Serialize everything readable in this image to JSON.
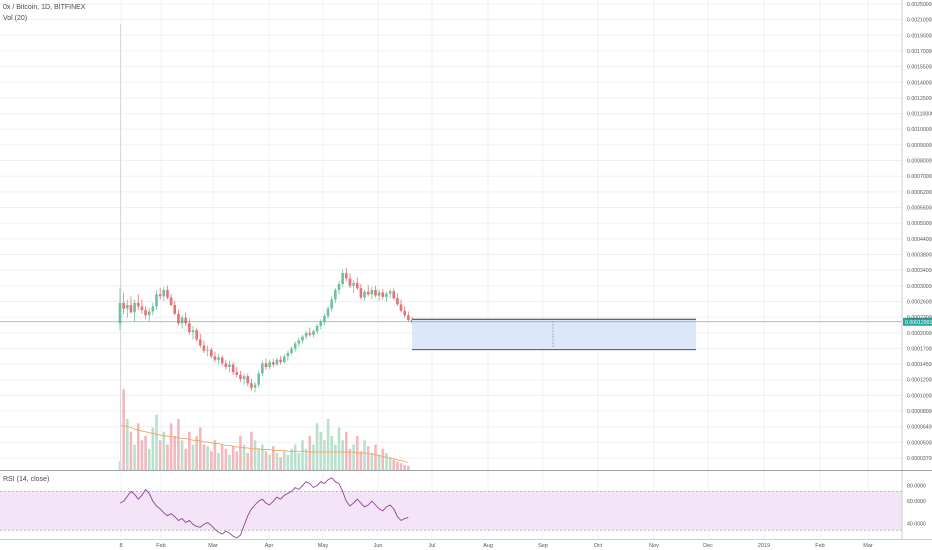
{
  "header": {
    "symbol": "0x / Bitcoin, 1D, BITFINEX",
    "volume_label": "Vol (20)",
    "rsi_label": "RSI (14, close)"
  },
  "colors": {
    "up": "#6cc29a",
    "down": "#e8707a",
    "vol_up": "#b9e0cd",
    "vol_down": "#f3b8bc",
    "vol_ma": "#f4a460",
    "rsi_line": "#8e4596",
    "rsi_band": "#f3e4f7",
    "price_line": "#26a69a",
    "price_tag": "#26a69a",
    "box_fill": "#dce8fa",
    "box_stroke": "#2e3f55",
    "grid": "#edf0f3"
  },
  "chart_data": [
    {
      "type": "candlestick",
      "title": "0x / Bitcoin, 1D, BITFINEX",
      "x_tick_labels": [
        "8",
        "Feb",
        "Mar",
        "Apr",
        "May",
        "Jun",
        "Jul",
        "Aug",
        "Sep",
        "Oct",
        "Nov",
        "Dec",
        "2019",
        "Feb",
        "Mar"
      ],
      "y_tick_labels": [
        "0.00250000",
        "0.00210000",
        "0.00190000",
        "0.00170000",
        "0.00155000",
        "0.00140000",
        "0.00125000",
        "0.00110000",
        "0.00100000",
        "0.00090000",
        "0.00080000",
        "0.00070000",
        "0.00062000",
        "0.00056000",
        "0.00050000",
        "0.00044000",
        "0.00038000",
        "0.00034000",
        "0.00030000",
        "0.00026000",
        "0.00023000",
        "0.00020000",
        "0.00017000",
        "0.00014500",
        "0.00012000",
        "0.00010000",
        "0.00008000",
        "0.00006400",
        "0.00005000",
        "0.00003700"
      ],
      "y_scale": "log",
      "y_range": [
        3.3e-05,
        0.0026
      ],
      "last_price": "0.00012991",
      "last_price_value": 0.00012991,
      "candles": [
        [
          0.000128,
          0.000179,
          0.00012,
          0.000155
        ],
        [
          0.000155,
          0.00017,
          0.00014,
          0.000147
        ],
        [
          0.000147,
          0.00016,
          0.000135,
          0.000152
        ],
        [
          0.000152,
          0.000165,
          0.00014,
          0.000142
        ],
        [
          0.000142,
          0.00016,
          0.00013,
          0.000155
        ],
        [
          0.000155,
          0.000168,
          0.000145,
          0.00015
        ],
        [
          0.00015,
          0.00016,
          0.00014,
          0.000145
        ],
        [
          0.000145,
          0.00015,
          0.000133,
          0.000138
        ],
        [
          0.000138,
          0.000148,
          0.00013,
          0.000143
        ],
        [
          0.000143,
          0.000155,
          0.000138,
          0.00015
        ],
        [
          0.00015,
          0.000175,
          0.000145,
          0.000168
        ],
        [
          0.000168,
          0.000178,
          0.00016,
          0.000165
        ],
        [
          0.000165,
          0.00018,
          0.000158,
          0.000175
        ],
        [
          0.000175,
          0.000182,
          0.00016,
          0.000163
        ],
        [
          0.000163,
          0.000168,
          0.00015,
          0.000152
        ],
        [
          0.000152,
          0.000158,
          0.000138,
          0.00014
        ],
        [
          0.00014,
          0.000145,
          0.000125,
          0.000128
        ],
        [
          0.000128,
          0.000138,
          0.000122,
          0.000135
        ],
        [
          0.000135,
          0.000142,
          0.000125,
          0.000128
        ],
        [
          0.000128,
          0.000134,
          0.000115,
          0.000118
        ],
        [
          0.000118,
          0.000125,
          0.00011,
          0.00012
        ],
        [
          0.00012,
          0.000123,
          0.000108,
          0.00011
        ],
        [
          0.00011,
          0.000116,
          0.000102,
          0.000104
        ],
        [
          0.000104,
          0.000109,
          9.7e-05,
          9.9e-05
        ],
        [
          9.9e-05,
          0.000104,
          9.4e-05,
          0.0001
        ],
        [
          0.0001,
          0.000102,
          9.2e-05,
          9.4e-05
        ],
        [
          9.4e-05,
          9.8e-05,
          8.9e-05,
          9.1e-05
        ],
        [
          9.1e-05,
          9.6e-05,
          8.7e-05,
          9.3e-05
        ],
        [
          9.3e-05,
          9.5e-05,
          8.6e-05,
          8.8e-05
        ],
        [
          8.8e-05,
          9.1e-05,
          8.3e-05,
          8.5e-05
        ],
        [
          8.5e-05,
          9e-05,
          8.1e-05,
          8.7e-05
        ],
        [
          8.7e-05,
          8.9e-05,
          7.9e-05,
          8.1e-05
        ],
        [
          8.1e-05,
          8.5e-05,
          7.7e-05,
          7.9e-05
        ],
        [
          7.9e-05,
          8.2e-05,
          7.4e-05,
          7.6e-05
        ],
        [
          7.6e-05,
          8e-05,
          7.2e-05,
          7.8e-05
        ],
        [
          7.8e-05,
          8e-05,
          7.1e-05,
          7.3e-05
        ],
        [
          7.3e-05,
          7.6e-05,
          6.8e-05,
          7e-05
        ],
        [
          7e-05,
          7.4e-05,
          6.7e-05,
          7.2e-05
        ],
        [
          7.2e-05,
          8.2e-05,
          7e-05,
          8e-05
        ],
        [
          8e-05,
          9e-05,
          7.8e-05,
          8.8e-05
        ],
        [
          8.8e-05,
          9.2e-05,
          8.3e-05,
          8.5e-05
        ],
        [
          8.5e-05,
          9.1e-05,
          8.3e-05,
          8.9e-05
        ],
        [
          8.9e-05,
          9.2e-05,
          8.5e-05,
          8.7e-05
        ],
        [
          8.7e-05,
          9.3e-05,
          8.6e-05,
          9.1e-05
        ],
        [
          9.1e-05,
          9.4e-05,
          8.7e-05,
          8.9e-05
        ],
        [
          8.9e-05,
          9.6e-05,
          8.8e-05,
          9.4e-05
        ],
        [
          9.4e-05,
          9.9e-05,
          9e-05,
          9.7e-05
        ],
        [
          9.7e-05,
          0.000103,
          9.5e-05,
          0.000101
        ],
        [
          0.000101,
          0.000108,
          9.8e-05,
          0.000106
        ],
        [
          0.000106,
          0.000112,
          0.000103,
          0.000109
        ],
        [
          0.000109,
          0.000115,
          0.000106,
          0.000113
        ],
        [
          0.000113,
          0.000119,
          0.00011,
          0.000117
        ],
        [
          0.000117,
          0.000123,
          0.000113,
          0.000115
        ],
        [
          0.000115,
          0.000121,
          0.000112,
          0.000119
        ],
        [
          0.000119,
          0.000127,
          0.000116,
          0.000125
        ],
        [
          0.000125,
          0.000133,
          0.000121,
          0.00013
        ],
        [
          0.00013,
          0.00014,
          0.000126,
          0.000137
        ],
        [
          0.000137,
          0.00015,
          0.000134,
          0.000147
        ],
        [
          0.000147,
          0.000165,
          0.000143,
          0.00016
        ],
        [
          0.00016,
          0.000178,
          0.000155,
          0.000175
        ],
        [
          0.000175,
          0.00019,
          0.000168,
          0.000185
        ],
        [
          0.000185,
          0.000212,
          0.00018,
          0.000205
        ],
        [
          0.000205,
          0.000215,
          0.00019,
          0.000195
        ],
        [
          0.000195,
          0.000205,
          0.000178,
          0.000182
        ],
        [
          0.000182,
          0.000192,
          0.00017,
          0.000187
        ],
        [
          0.000187,
          0.000197,
          0.000175,
          0.000178
        ],
        [
          0.000178,
          0.000185,
          0.00016,
          0.000163
        ],
        [
          0.000163,
          0.000175,
          0.000158,
          0.000172
        ],
        [
          0.000172,
          0.000183,
          0.000165,
          0.000168
        ],
        [
          0.000168,
          0.00018,
          0.00016,
          0.000175
        ],
        [
          0.000175,
          0.000182,
          0.000163,
          0.000166
        ],
        [
          0.000166,
          0.000176,
          0.000158,
          0.000171
        ],
        [
          0.000171,
          0.000177,
          0.00016,
          0.000164
        ],
        [
          0.000164,
          0.000172,
          0.000157,
          0.000169
        ],
        [
          0.000169,
          0.000176,
          0.000162,
          0.000173
        ],
        [
          0.000173,
          0.000177,
          0.00016,
          0.000162
        ],
        [
          0.000162,
          0.00017,
          0.000151,
          0.000153
        ],
        [
          0.000153,
          0.00016,
          0.000142,
          0.000144
        ],
        [
          0.000144,
          0.00015,
          0.000135,
          0.000138
        ],
        [
          0.000138,
          0.000143,
          0.00013,
          0.000132
        ],
        [
          0.000132,
          0.000136,
          0.000127,
          0.00013
        ]
      ],
      "volume_ma": [
        0.52,
        0.52,
        0.51,
        0.5,
        0.48,
        0.47,
        0.46,
        0.45,
        0.44,
        0.43,
        0.42,
        0.41,
        0.4,
        0.4,
        0.39,
        0.39,
        0.38,
        0.37,
        0.37,
        0.36,
        0.35,
        0.35,
        0.34,
        0.33,
        0.33,
        0.32,
        0.31,
        0.31,
        0.3,
        0.29,
        0.29,
        0.28,
        0.27,
        0.27,
        0.26,
        0.26,
        0.25,
        0.25,
        0.25,
        0.24,
        0.24,
        0.24,
        0.23,
        0.23,
        0.23,
        0.23,
        0.22,
        0.22,
        0.22,
        0.22,
        0.22,
        0.22,
        0.21,
        0.21,
        0.21,
        0.21,
        0.21,
        0.21,
        0.21,
        0.21,
        0.21,
        0.21,
        0.21,
        0.21,
        0.21,
        0.2,
        0.2,
        0.2,
        0.19,
        0.19,
        0.18,
        0.17,
        0.16,
        0.15,
        0.14,
        0.13,
        0.12,
        0.11,
        0.1,
        0.09
      ],
      "volume": [
        0.1,
        0.95,
        0.6,
        0.45,
        0.3,
        0.55,
        0.35,
        0.4,
        0.25,
        0.5,
        0.65,
        0.35,
        0.45,
        0.3,
        0.55,
        0.4,
        0.6,
        0.35,
        0.25,
        0.45,
        0.3,
        0.4,
        0.5,
        0.3,
        0.28,
        0.22,
        0.35,
        0.2,
        0.3,
        0.25,
        0.18,
        0.28,
        0.22,
        0.4,
        0.3,
        0.2,
        0.45,
        0.35,
        0.25,
        0.3,
        0.22,
        0.18,
        0.28,
        0.2,
        0.15,
        0.22,
        0.18,
        0.25,
        0.3,
        0.2,
        0.35,
        0.25,
        0.4,
        0.3,
        0.55,
        0.45,
        0.35,
        0.6,
        0.4,
        0.3,
        0.5,
        0.35,
        0.45,
        0.25,
        0.3,
        0.4,
        0.22,
        0.35,
        0.28,
        0.2,
        0.3,
        0.18,
        0.25,
        0.2,
        0.15,
        0.12,
        0.1,
        0.08,
        0.06,
        0.05
      ],
      "projection_box": {
        "top": 0.000133,
        "bottom": 0.0001,
        "start_index": 80,
        "end_index": 160
      }
    },
    {
      "type": "line",
      "title": "RSI (14, close)",
      "y_tick_labels": [
        "80.0000",
        "60.0000",
        "40.0000"
      ],
      "y_range": [
        22,
        90
      ],
      "levels": [
        70,
        30
      ],
      "values": [
        58,
        60,
        65,
        70,
        67,
        62,
        66,
        72,
        68,
        60,
        55,
        52,
        48,
        45,
        47,
        44,
        40,
        42,
        38,
        40,
        36,
        34,
        33,
        36,
        38,
        35,
        31,
        28,
        26,
        29,
        27,
        24,
        22,
        25,
        35,
        45,
        52,
        56,
        60,
        62,
        58,
        56,
        60,
        64,
        62,
        66,
        68,
        70,
        74,
        72,
        76,
        80,
        78,
        74,
        76,
        80,
        78,
        82,
        84,
        80,
        78,
        70,
        60,
        55,
        58,
        62,
        58,
        54,
        56,
        60,
        56,
        52,
        50,
        54,
        56,
        52,
        44,
        40,
        42,
        43
      ]
    }
  ]
}
